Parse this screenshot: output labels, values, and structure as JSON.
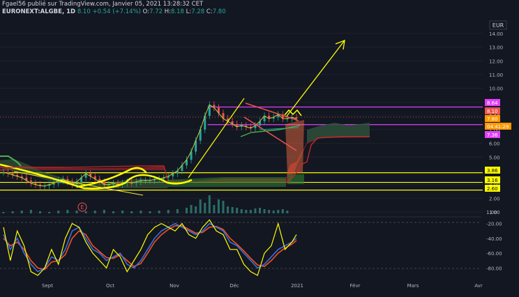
{
  "header": {
    "publisher": "Fgael56 publié sur TradingView.com, Janvier 05, 2021 13:28:32 CET",
    "symbol": "EURONEXT:ALGBE, 1D",
    "last": "8.10",
    "change": "+0.54 (+7.14%)",
    "o_label": "O:",
    "o_val": "7.72",
    "h_label": "H:",
    "h_val": "8.18",
    "l_label": "L:",
    "l_val": "7.28",
    "c_label": "C:",
    "c_val": "7.80"
  },
  "currency": "EUR",
  "colors": {
    "background": "#131722",
    "up": "#26a69a",
    "down": "#ef5350",
    "yellow_lines": "#ffff00",
    "magenta": "#e040fb",
    "cloud_green": "#2e4f3a",
    "cloud_red": "#c62828",
    "volume": "#2a6e68",
    "stoch_k": "#3b6fe0",
    "stoch_d": "#f4511e"
  },
  "chart_data": {
    "type": "line",
    "title": "",
    "x_ticks": [
      "Sept",
      "Oct",
      "Nov",
      "Déc",
      "2021",
      "Févr",
      "Mars",
      "Avr"
    ],
    "price_axis": {
      "ticks": [
        "14.00",
        "13.00",
        "12.00",
        "11.00",
        "10.00",
        "9.00",
        "8.00",
        "7.00",
        "6.00",
        "5.00",
        "4.00",
        "3.00",
        "2.00",
        "1.00"
      ],
      "ylim": [
        0.5,
        14.5
      ]
    },
    "osc_axis": {
      "ticks": [
        "-20.00",
        "-40.00",
        "-60.00",
        "-80.00"
      ],
      "ylim": [
        -90,
        -10
      ]
    },
    "price_labels": [
      {
        "value": "8.64",
        "color": "#e040fb"
      },
      {
        "value": "8.10",
        "color": "#ef5350"
      },
      {
        "value": "7.80",
        "color": "#ff9800"
      },
      {
        "value": "04:41:29",
        "color": "#ff9800"
      },
      {
        "value": "7.36",
        "color": "#e040fb"
      },
      {
        "value": "3.86",
        "color": "#ffff00"
      },
      {
        "value": "3.16",
        "color": "#ffff00"
      },
      {
        "value": "2.60",
        "color": "#ffff00"
      }
    ],
    "horizontal_levels": [
      {
        "y": 8.64,
        "color": "#e040fb",
        "x_start": 0.43
      },
      {
        "y": 7.36,
        "color": "#e040fb",
        "x_start": 0.43
      },
      {
        "y": 3.86,
        "color": "#ffff00",
        "x_start": 0
      },
      {
        "y": 3.16,
        "color": "#ffff00",
        "x_start": 0
      },
      {
        "y": 2.6,
        "color": "#ffff00",
        "x_start": 0
      }
    ],
    "price_series": {
      "name": "",
      "t": [
        0,
        2,
        4,
        6,
        8,
        10,
        12,
        14,
        16,
        18,
        20,
        22,
        24,
        26,
        28,
        30,
        32,
        34,
        36,
        38,
        40,
        42,
        44,
        46,
        48,
        50,
        52,
        54,
        56,
        58,
        60,
        62,
        64,
        66,
        68,
        70,
        72,
        74,
        76,
        78,
        80,
        82,
        84,
        86,
        88,
        90,
        92,
        94,
        96,
        98,
        100,
        102,
        104,
        106,
        108,
        110,
        112,
        114,
        116,
        118,
        120,
        122,
        124,
        126,
        128
      ],
      "close": [
        3.9,
        3.8,
        3.7,
        3.6,
        3.5,
        3.3,
        3.1,
        3.0,
        2.9,
        2.9,
        3.0,
        3.1,
        3.3,
        3.4,
        3.2,
        3.0,
        3.2,
        3.5,
        3.8,
        3.6,
        3.4,
        3.2,
        3.0,
        3.0,
        3.1,
        3.0,
        3.1,
        3.2,
        3.1,
        3.2,
        3.3,
        3.3,
        3.3,
        3.4,
        3.4,
        3.5,
        3.6,
        3.8,
        4.0,
        4.4,
        4.8,
        5.4,
        6.2,
        7.0,
        8.0,
        8.8,
        8.6,
        8.2,
        7.8,
        7.6,
        7.4,
        7.2,
        7.3,
        7.2,
        7.1,
        7.3,
        7.6,
        8.0,
        7.8,
        7.9,
        8.1,
        7.8,
        7.8,
        7.9,
        7.8
      ]
    },
    "volume_series": {
      "t": [
        0,
        4,
        8,
        12,
        16,
        20,
        24,
        28,
        32,
        36,
        40,
        44,
        48,
        52,
        56,
        60,
        64,
        68,
        72,
        76,
        80,
        82,
        84,
        86,
        88,
        90,
        92,
        94,
        96,
        98,
        100,
        102,
        104,
        106,
        108,
        110,
        112,
        114,
        116,
        118,
        120,
        122,
        124
      ],
      "value": [
        0.2,
        0.3,
        0.4,
        0.5,
        0.3,
        0.2,
        0.4,
        0.5,
        0.4,
        0.3,
        0.4,
        0.5,
        0.3,
        0.4,
        0.3,
        0.4,
        0.3,
        0.4,
        0.5,
        0.6,
        0.8,
        1.2,
        1.0,
        2.0,
        1.5,
        2.6,
        1.2,
        2.0,
        1.8,
        1.0,
        0.9,
        0.8,
        0.6,
        0.5,
        0.5,
        0.7,
        0.8,
        0.6,
        0.5,
        0.4,
        0.5,
        0.6,
        0.4
      ]
    },
    "stoch_k": {
      "t": [
        0,
        3,
        6,
        9,
        12,
        15,
        18,
        21,
        24,
        27,
        30,
        33,
        36,
        39,
        42,
        45,
        48,
        51,
        54,
        57,
        60,
        63,
        66,
        69,
        72,
        75,
        78,
        81,
        84,
        87,
        90,
        93,
        96,
        99,
        102,
        105,
        108,
        111,
        114,
        117,
        120,
        123,
        126,
        128
      ],
      "value": [
        -35,
        -55,
        -40,
        -60,
        -75,
        -85,
        -80,
        -65,
        -70,
        -55,
        -30,
        -25,
        -40,
        -55,
        -60,
        -70,
        -65,
        -60,
        -75,
        -80,
        -70,
        -55,
        -40,
        -30,
        -25,
        -20,
        -25,
        -30,
        -35,
        -30,
        -20,
        -25,
        -30,
        -45,
        -50,
        -60,
        -70,
        -80,
        -75,
        -65,
        -55,
        -50,
        -45,
        -40
      ]
    },
    "stoch_d": {
      "t": [
        0,
        3,
        6,
        9,
        12,
        15,
        18,
        21,
        24,
        27,
        30,
        33,
        36,
        39,
        42,
        45,
        48,
        51,
        54,
        57,
        60,
        63,
        66,
        69,
        72,
        75,
        78,
        81,
        84,
        87,
        90,
        93,
        96,
        99,
        102,
        105,
        108,
        111,
        114,
        117,
        120,
        123,
        126,
        128
      ],
      "value": [
        -40,
        -50,
        -45,
        -55,
        -70,
        -80,
        -82,
        -72,
        -70,
        -62,
        -40,
        -30,
        -35,
        -50,
        -58,
        -66,
        -67,
        -62,
        -70,
        -78,
        -74,
        -60,
        -45,
        -35,
        -28,
        -23,
        -23,
        -28,
        -33,
        -32,
        -25,
        -24,
        -28,
        -40,
        -48,
        -57,
        -67,
        -76,
        -78,
        -70,
        -60,
        -53,
        -48,
        -43
      ]
    },
    "stoch_yellow": {
      "t": [
        0,
        3,
        6,
        9,
        12,
        15,
        18,
        21,
        24,
        27,
        30,
        33,
        36,
        39,
        42,
        45,
        48,
        51,
        54,
        57,
        60,
        63,
        66,
        69,
        72,
        75,
        78,
        81,
        84,
        87,
        90,
        93,
        96,
        99,
        102,
        105,
        108,
        111,
        114,
        117,
        120,
        123,
        126,
        128
      ],
      "value": [
        -25,
        -70,
        -30,
        -50,
        -85,
        -90,
        -80,
        -55,
        -75,
        -40,
        -20,
        -25,
        -45,
        -60,
        -70,
        -80,
        -55,
        -65,
        -85,
        -70,
        -55,
        -35,
        -25,
        -20,
        -25,
        -30,
        -20,
        -35,
        -40,
        -25,
        -15,
        -30,
        -35,
        -55,
        -55,
        -75,
        -85,
        -90,
        -60,
        -50,
        -20,
        -55,
        -45,
        -35
      ]
    }
  },
  "annotations": {
    "earnings_marker": "E"
  }
}
